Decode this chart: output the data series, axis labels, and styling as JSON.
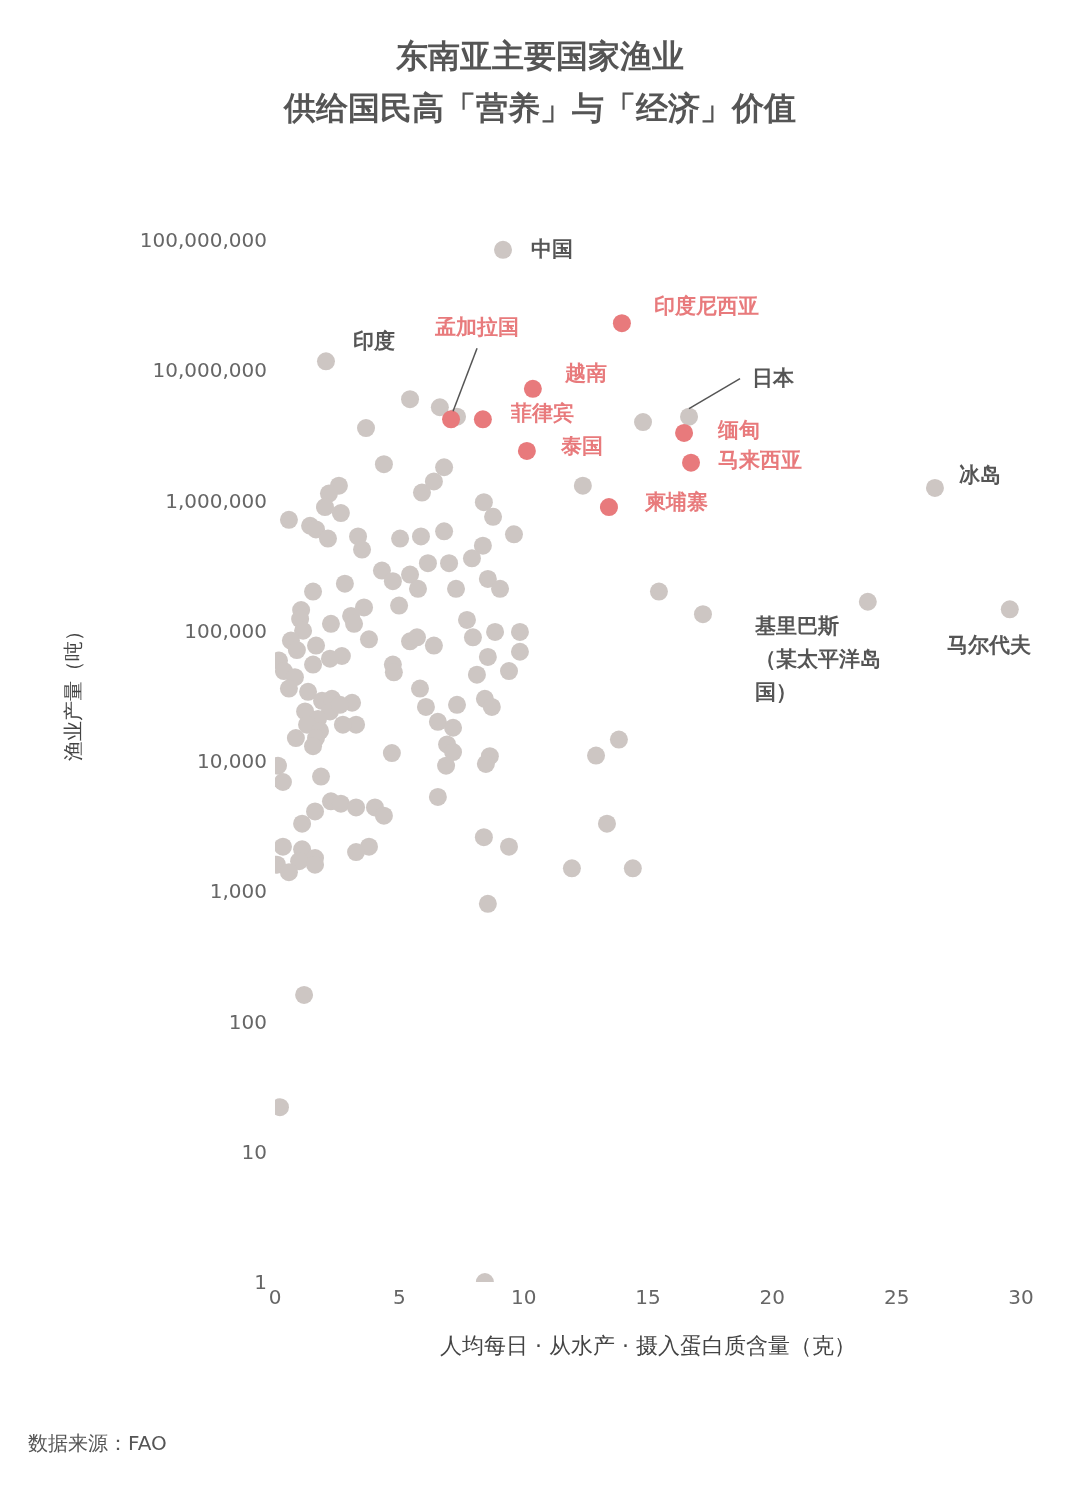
{
  "chart_data": {
    "type": "scatter",
    "title": "东南亚主要国家渔业供给国民高「营养」与「经济」价值",
    "xlabel": "人均每日 · 从水产 · 摄入蛋白质含量（克）",
    "ylabel": "渔业产量（吨）",
    "log": "y",
    "grid": false,
    "legend": false,
    "marker": "circle",
    "xlim": [
      0,
      30
    ],
    "xticks": [
      0,
      5,
      10,
      15,
      20,
      25,
      30
    ],
    "ylim": [
      1,
      100000000
    ],
    "yticks": [
      1,
      10,
      100,
      {
        "value": 1000,
        "label": "1,000"
      },
      {
        "value": 10000,
        "label": "10,000"
      },
      {
        "value": 100000,
        "label": "100,000"
      },
      {
        "value": 1000000,
        "label": "1,000,000"
      },
      {
        "value": 10000000,
        "label": "10,000,000"
      },
      {
        "value": 100000000,
        "label": "100,000,000"
      }
    ],
    "series": [
      {
        "color": "#cdc6c3",
        "x": [
          9.17,
          2.05,
          16.65,
          26.54,
          23.84,
          29.55,
          5.43,
          6.63,
          7.32,
          14.8,
          3.66,
          4.38,
          6.8,
          6.39,
          5.91,
          12.38,
          2.57,
          2.17,
          0.56,
          2.01,
          2.65,
          1.41,
          1.65,
          2.13,
          3.34,
          3.5,
          5.03,
          5.87,
          6.8,
          8.4,
          8.77,
          9.61,
          8.36,
          7.92,
          7.0,
          6.15,
          5.43,
          4.3,
          4.74,
          5.75,
          7.28,
          8.56,
          9.05,
          2.81,
          1.53,
          4.99,
          3.58,
          3.06,
          1.05,
          1.01,
          2.25,
          3.18,
          1.13,
          7.72,
          9.85,
          8.85,
          3.78,
          5.43,
          5.71,
          6.39,
          7.96,
          0.64,
          1.65,
          0.88,
          9.85,
          8.56,
          2.69,
          2.21,
          0.16,
          4.74,
          4.78,
          9.41,
          8.12,
          0.36,
          0.8,
          1.53,
          0.56,
          1.33,
          5.83,
          8.44,
          8.72,
          7.32,
          6.07,
          1.89,
          2.29,
          3.1,
          1.21,
          2.21,
          2.61,
          1.73,
          6.55,
          7.16,
          3.26,
          2.73,
          1.29,
          1.81,
          0.84,
          1.65,
          1.53,
          6.92,
          7.16,
          4.7,
          8.64,
          12.91,
          13.83,
          8.48,
          6.88,
          0.12,
          0.32,
          1.85,
          6.55,
          2.25,
          2.65,
          3.26,
          4.02,
          4.38,
          1.61,
          1.09,
          13.35,
          8.4,
          9.41,
          3.78,
          3.26,
          0.32,
          1.09,
          1.61,
          0.97,
          1.61,
          0.08,
          0.56,
          11.94,
          14.39,
          8.56,
          1.17,
          0.2,
          8.44,
          17.21,
          15.44
        ],
        "values": [
          84000000,
          11700000,
          4400000,
          1250000,
          167000,
          146000,
          6000000,
          5200000,
          4400000,
          4000000,
          3600000,
          1900000,
          1800000,
          1400000,
          1150000,
          1300000,
          1300000,
          1130000,
          710000,
          890000,
          800000,
          640000,
          600000,
          510000,
          530000,
          420000,
          510000,
          530000,
          580000,
          970000,
          750000,
          550000,
          450000,
          360000,
          330000,
          330000,
          270000,
          290000,
          240000,
          210000,
          210000,
          250000,
          210000,
          230000,
          200000,
          156000,
          151000,
          130000,
          144000,
          123000,
          113000,
          113000,
          100000,
          121000,
          98000,
          98000,
          86000,
          83000,
          89000,
          77000,
          89000,
          84000,
          77000,
          71000,
          69000,
          63000,
          64000,
          61000,
          59000,
          55000,
          48000,
          49000,
          46000,
          49000,
          44000,
          55000,
          36000,
          34000,
          36000,
          30000,
          26000,
          27000,
          26000,
          29000,
          30000,
          28000,
          24000,
          24000,
          27000,
          21000,
          20000,
          18000,
          19000,
          19000,
          19000,
          17000,
          15000,
          15000,
          13000,
          13400,
          11700,
          11500,
          10900,
          11000,
          14600,
          9500,
          9200,
          9200,
          6900,
          7600,
          5300,
          4900,
          4700,
          4400,
          4400,
          3800,
          4100,
          3300,
          3300,
          2600,
          2200,
          2200,
          2000,
          2200,
          2100,
          1800,
          1700,
          1600,
          1600,
          1400,
          1500,
          1500,
          800,
          160,
          22,
          1,
          134000,
          200000
        ]
      },
      {
        "color": "#e87a7c",
        "x": [
          13.95,
          10.37,
          7.08,
          8.36,
          10.13,
          16.45,
          16.73,
          13.43
        ],
        "values": [
          23000000,
          7200000,
          4200000,
          4200000,
          2400000,
          3300000,
          1950000,
          890000
        ]
      }
    ],
    "annotations": [
      {
        "text": "中国",
        "x": 9.17,
        "y": 84000000
      },
      {
        "text": "印度尼西亚",
        "x": 13.95,
        "y": 23000000
      },
      {
        "text": "越南",
        "x": 10.37,
        "y": 7200000
      },
      {
        "text": "孟加拉国",
        "x": 7.08,
        "y": 4200000
      },
      {
        "text": "菲律宾",
        "x": 8.36,
        "y": 4200000
      },
      {
        "text": "泰国",
        "x": 10.13,
        "y": 2400000
      },
      {
        "text": "缅甸",
        "x": 16.45,
        "y": 3300000
      },
      {
        "text": "马来西亚",
        "x": 16.73,
        "y": 1950000
      },
      {
        "text": "柬埔寨",
        "x": 13.43,
        "y": 890000
      },
      {
        "text": "印度",
        "x": 2.05,
        "y": 11700000
      },
      {
        "text": "日本",
        "x": 16.65,
        "y": 4400000
      },
      {
        "text": "冰岛",
        "x": 26.54,
        "y": 1250000
      },
      {
        "text": "基里巴斯（某太平洋岛国）",
        "x": 23.84,
        "y": 167000
      },
      {
        "text": "马尔代夫",
        "x": 29.55,
        "y": 146000
      },
      "数据来源：FAO"
    ]
  }
}
